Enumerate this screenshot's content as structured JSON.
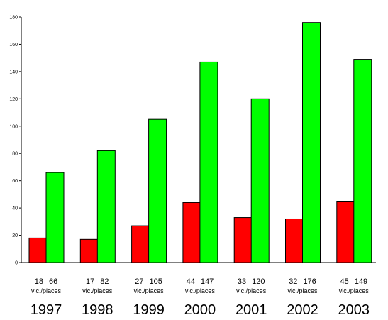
{
  "chart_data": {
    "type": "bar",
    "title": "",
    "xlabel": "",
    "ylabel": "",
    "categories": [
      "1997",
      "1998",
      "1999",
      "2000",
      "2001",
      "2002",
      "2003"
    ],
    "series": [
      {
        "values": [
          18,
          17,
          27,
          44,
          33,
          32,
          45
        ],
        "color": "#ff0000"
      },
      {
        "values": [
          66,
          82,
          105,
          147,
          120,
          176,
          149
        ],
        "color": "#00ff00"
      }
    ],
    "category_caption": "vic./places",
    "ylim": [
      0,
      180
    ],
    "y_ticks": [
      "0",
      "20",
      "40",
      "60",
      "80",
      "100",
      "120",
      "140",
      "160",
      "180"
    ],
    "y_tick_values": [
      0,
      20,
      40,
      60,
      80,
      100,
      120,
      140,
      160,
      180
    ],
    "grid": false,
    "legend": "none"
  }
}
